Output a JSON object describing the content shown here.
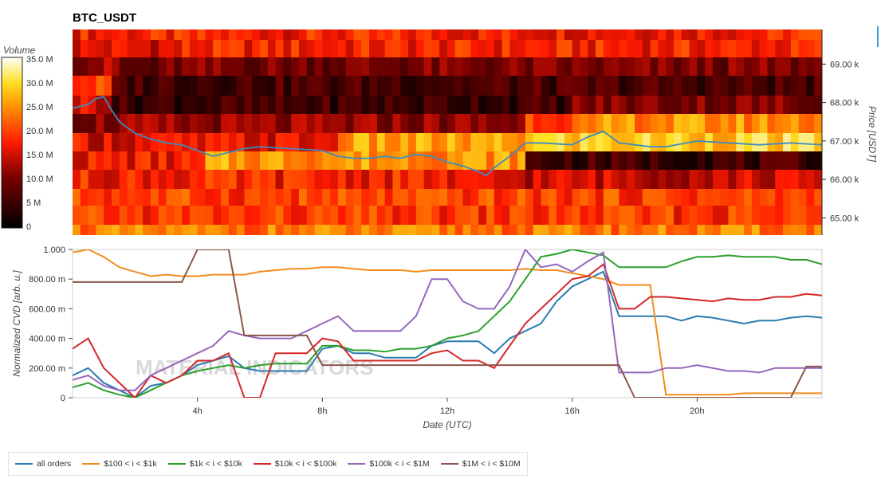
{
  "window": {
    "title": "BTC_USDT"
  },
  "colors": {
    "all orders": "#2c7bb0",
    "$100 < i < $1k": "#f28c1c",
    "$1k < i < $10k": "#2ca02c",
    "$10k < i < $100k": "#d62728",
    "$100k < i < $1M": "#9467bd",
    "$1M < i < $10M": "#8c564b",
    "price_line": "#3d8cc0"
  },
  "watermark": "MATERIAL INDICATORS",
  "chart_data": [
    {
      "type": "heatmap",
      "title": "BTC_USDT",
      "colorbar": {
        "label": "Volume",
        "ticks": [
          "35.0 M",
          "30.0 M",
          "25.0 M",
          "20.0 M",
          "15.0 M",
          "10.0 M",
          "5 M",
          "0"
        ],
        "range": [
          0,
          35000000
        ]
      },
      "ylabel": "Price [USDT]",
      "yticks": [
        "69.00 k",
        "68.00 k",
        "67.00 k",
        "66.00 k",
        "65.00 k"
      ],
      "ylim": [
        64550,
        69900
      ],
      "price_line": {
        "name": "price",
        "x": [
          0,
          0.25,
          0.5,
          0.75,
          1,
          1.25,
          1.5,
          2,
          2.5,
          3,
          3.5,
          4,
          4.5,
          5,
          5.5,
          6,
          7,
          8,
          8.5,
          9,
          9.5,
          10,
          10.5,
          11,
          11.5,
          12,
          12.5,
          13,
          13.25,
          13.5,
          13.75,
          14,
          14.5,
          15,
          16,
          16.5,
          17,
          17.5,
          18,
          18.5,
          19,
          20,
          21,
          22,
          23,
          24
        ],
        "y": [
          67.85,
          67.9,
          67.95,
          68.1,
          68.15,
          67.8,
          67.5,
          67.2,
          67.05,
          66.95,
          66.9,
          66.75,
          66.6,
          66.7,
          66.8,
          66.85,
          66.8,
          66.75,
          66.6,
          66.55,
          66.55,
          66.6,
          66.55,
          66.65,
          66.6,
          66.45,
          66.35,
          66.2,
          66.1,
          66.3,
          66.45,
          66.6,
          66.95,
          66.95,
          66.9,
          67.1,
          67.25,
          66.95,
          66.9,
          66.85,
          66.85,
          67.0,
          66.95,
          66.9,
          66.95,
          66.9
        ]
      }
    },
    {
      "type": "line",
      "ylabel": "Normalized CVD [arb. u.]",
      "xlabel": "Date (UTC)",
      "xticks": [
        "4h",
        "8h",
        "12h",
        "16h",
        "20h"
      ],
      "xtick_values": [
        4,
        8,
        12,
        16,
        20
      ],
      "xlim": [
        0,
        24
      ],
      "yticks": [
        "1.000",
        "800.00 m",
        "600.00 m",
        "400.00 m",
        "200.00 m",
        "0"
      ],
      "ylim": [
        0,
        1
      ],
      "x": [
        0,
        0.5,
        1,
        1.5,
        2,
        2.5,
        3,
        3.5,
        4,
        4.5,
        5,
        5.5,
        6,
        6.5,
        7,
        7.5,
        8,
        8.5,
        9,
        9.5,
        10,
        10.5,
        11,
        11.5,
        12,
        12.5,
        13,
        13.5,
        14,
        14.5,
        15,
        15.5,
        16,
        16.5,
        17,
        17.5,
        18,
        18.5,
        19,
        19.5,
        20,
        20.5,
        21,
        21.5,
        22,
        22.5,
        23,
        23.5,
        24
      ],
      "series": [
        {
          "name": "all orders",
          "values": [
            0.15,
            0.2,
            0.1,
            0.05,
            0.0,
            0.08,
            0.1,
            0.15,
            0.22,
            0.25,
            0.28,
            0.2,
            0.18,
            0.18,
            0.18,
            0.18,
            0.33,
            0.35,
            0.3,
            0.3,
            0.27,
            0.27,
            0.27,
            0.35,
            0.38,
            0.38,
            0.38,
            0.3,
            0.4,
            0.45,
            0.5,
            0.65,
            0.75,
            0.8,
            0.85,
            0.55,
            0.55,
            0.55,
            0.55,
            0.52,
            0.55,
            0.54,
            0.52,
            0.5,
            0.52,
            0.52,
            0.54,
            0.55,
            0.54
          ]
        },
        {
          "name": "$100 < i < $1k",
          "values": [
            0.98,
            1.0,
            0.95,
            0.88,
            0.85,
            0.82,
            0.83,
            0.82,
            0.82,
            0.83,
            0.83,
            0.83,
            0.85,
            0.86,
            0.87,
            0.87,
            0.88,
            0.88,
            0.87,
            0.86,
            0.86,
            0.86,
            0.85,
            0.86,
            0.86,
            0.86,
            0.86,
            0.86,
            0.86,
            0.87,
            0.86,
            0.86,
            0.84,
            0.82,
            0.8,
            0.76,
            0.76,
            0.76,
            0.02,
            0.02,
            0.02,
            0.02,
            0.02,
            0.03,
            0.03,
            0.03,
            0.03,
            0.03,
            0.03
          ]
        },
        {
          "name": "$1k < i < $10k",
          "values": [
            0.07,
            0.1,
            0.05,
            0.02,
            0.0,
            0.05,
            0.1,
            0.15,
            0.18,
            0.2,
            0.22,
            0.2,
            0.22,
            0.23,
            0.23,
            0.23,
            0.35,
            0.35,
            0.32,
            0.32,
            0.31,
            0.33,
            0.33,
            0.35,
            0.4,
            0.42,
            0.45,
            0.55,
            0.65,
            0.8,
            0.95,
            0.97,
            1.0,
            0.98,
            0.96,
            0.88,
            0.88,
            0.88,
            0.88,
            0.92,
            0.95,
            0.95,
            0.96,
            0.95,
            0.95,
            0.95,
            0.93,
            0.93,
            0.9
          ]
        },
        {
          "name": "$10k < i < $100k",
          "values": [
            0.33,
            0.4,
            0.2,
            0.1,
            0.0,
            0.15,
            0.1,
            0.15,
            0.25,
            0.25,
            0.3,
            0.0,
            0.0,
            0.3,
            0.3,
            0.3,
            0.4,
            0.38,
            0.25,
            0.25,
            0.25,
            0.25,
            0.25,
            0.3,
            0.32,
            0.25,
            0.25,
            0.2,
            0.35,
            0.5,
            0.6,
            0.7,
            0.8,
            0.82,
            0.9,
            0.6,
            0.6,
            0.68,
            0.68,
            0.67,
            0.66,
            0.65,
            0.67,
            0.66,
            0.66,
            0.68,
            0.68,
            0.7,
            0.69
          ]
        },
        {
          "name": "$100k < i < $1M",
          "values": [
            0.12,
            0.15,
            0.08,
            0.05,
            0.05,
            0.15,
            0.2,
            0.25,
            0.3,
            0.35,
            0.45,
            0.42,
            0.4,
            0.4,
            0.4,
            0.45,
            0.5,
            0.55,
            0.45,
            0.45,
            0.45,
            0.45,
            0.55,
            0.8,
            0.8,
            0.65,
            0.6,
            0.6,
            0.75,
            1.0,
            0.88,
            0.9,
            0.85,
            0.92,
            0.98,
            0.17,
            0.17,
            0.17,
            0.2,
            0.2,
            0.22,
            0.2,
            0.18,
            0.18,
            0.17,
            0.2,
            0.2,
            0.2,
            0.2
          ]
        },
        {
          "name": "$1M < i < $10M",
          "values": [
            0.78,
            0.78,
            0.78,
            0.78,
            0.78,
            0.78,
            0.78,
            0.78,
            1.0,
            1.0,
            1.0,
            0.42,
            0.42,
            0.42,
            0.42,
            0.42,
            0.22,
            0.22,
            0.22,
            0.22,
            0.22,
            0.22,
            0.22,
            0.22,
            0.22,
            0.22,
            0.22,
            0.22,
            0.22,
            0.22,
            0.22,
            0.22,
            0.22,
            0.22,
            0.22,
            0.22,
            0.0,
            0.0,
            0.0,
            0.0,
            0.0,
            0.0,
            0.0,
            0.0,
            0.0,
            0.0,
            0.0,
            0.21,
            0.21
          ]
        }
      ],
      "legend": "bottom-left"
    }
  ],
  "legend": {
    "items": [
      {
        "label": "all orders"
      },
      {
        "label": "$100 < i < $1k"
      },
      {
        "label": "$1k < i < $10k"
      },
      {
        "label": "$10k < i < $100k"
      },
      {
        "label": "$100k < i < $1M"
      },
      {
        "label": "$1M < i < $10M"
      }
    ]
  }
}
